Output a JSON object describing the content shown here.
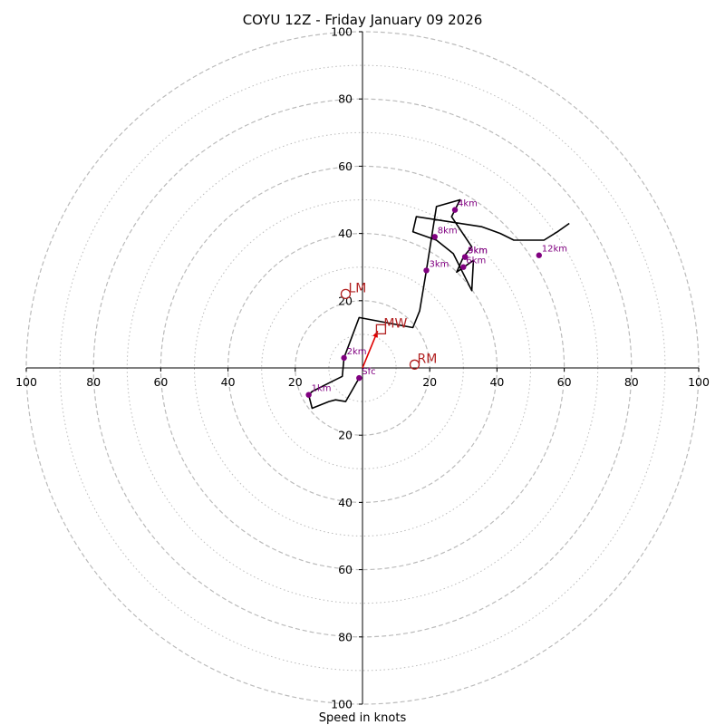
{
  "chart_data": {
    "type": "hodograph",
    "title": "COYU 12Z - Friday January 09 2026",
    "xlabel": "Speed in knots",
    "axis_range": [
      -100,
      100
    ],
    "ring_major": [
      20,
      40,
      60,
      80,
      100
    ],
    "ring_minor": [
      10,
      30,
      50,
      70,
      90
    ],
    "x_ticks": [
      {
        "value": -100,
        "label": "100"
      },
      {
        "value": -80,
        "label": "80"
      },
      {
        "value": -60,
        "label": "60"
      },
      {
        "value": -40,
        "label": "40"
      },
      {
        "value": -20,
        "label": "20"
      },
      {
        "value": 20,
        "label": "20"
      },
      {
        "value": 40,
        "label": "40"
      },
      {
        "value": 60,
        "label": "60"
      },
      {
        "value": 80,
        "label": "80"
      },
      {
        "value": 100,
        "label": "100"
      }
    ],
    "y_ticks": [
      {
        "value": 100,
        "label": "100"
      },
      {
        "value": 80,
        "label": "80"
      },
      {
        "value": 60,
        "label": "60"
      },
      {
        "value": 40,
        "label": "40"
      },
      {
        "value": 20,
        "label": "20"
      },
      {
        "value": -20,
        "label": "20"
      },
      {
        "value": -40,
        "label": "40"
      },
      {
        "value": -60,
        "label": "60"
      },
      {
        "value": -80,
        "label": "80"
      },
      {
        "value": -100,
        "label": "100"
      }
    ],
    "trace": [
      [
        -1,
        -3
      ],
      [
        -5,
        -10
      ],
      [
        -8,
        -9.5
      ],
      [
        -10,
        -10
      ],
      [
        -15,
        -12
      ],
      [
        -16,
        -8
      ],
      [
        -15,
        -7
      ],
      [
        -9,
        -4
      ],
      [
        -6,
        -2.5
      ],
      [
        -5.5,
        3
      ],
      [
        -1,
        15
      ],
      [
        15,
        12
      ],
      [
        17,
        17
      ],
      [
        19,
        29
      ],
      [
        22,
        48
      ],
      [
        29,
        50
      ],
      [
        26.5,
        45
      ],
      [
        32.5,
        36
      ],
      [
        30,
        33
      ],
      [
        28,
        28.5
      ],
      [
        33,
        32
      ],
      [
        32.5,
        23
      ],
      [
        27,
        34
      ],
      [
        22,
        38
      ],
      [
        15,
        40.5
      ],
      [
        16,
        45
      ],
      [
        35.5,
        42
      ],
      [
        41,
        40
      ],
      [
        45,
        38
      ],
      [
        54,
        38
      ],
      [
        58,
        40.5
      ],
      [
        61.5,
        43
      ]
    ],
    "height_markers": [
      {
        "label": "Sfc",
        "u": -1,
        "v": -3
      },
      {
        "label": "1km",
        "u": -16,
        "v": -8
      },
      {
        "label": "2km",
        "u": -5.5,
        "v": 3
      },
      {
        "label": "3km",
        "u": 19,
        "v": 29
      },
      {
        "label": "4km",
        "u": 27.5,
        "v": 47
      },
      {
        "label": "5km",
        "u": 30.5,
        "v": 33
      },
      {
        "label": "6km",
        "u": 30,
        "v": 30
      },
      {
        "label": "8km",
        "u": 21.5,
        "v": 39
      },
      {
        "label": "9km",
        "u": 30.5,
        "v": 33
      },
      {
        "label": "12km",
        "u": 52.5,
        "v": 33.5
      }
    ],
    "motion_markers": [
      {
        "label": "LM",
        "u": -5,
        "v": 22,
        "shape": "circle"
      },
      {
        "label": "RM",
        "u": 15.5,
        "v": 1,
        "shape": "circle"
      },
      {
        "label": "MW",
        "u": 5.5,
        "v": 11.5,
        "shape": "square"
      }
    ],
    "mean_wind_vector": {
      "from": [
        0,
        0
      ],
      "to": [
        4.5,
        11
      ]
    },
    "colors": {
      "trace": "#000000",
      "height_markers": "#800080",
      "motion": "#b22222",
      "vector": "#e00000",
      "grid": "#bbbbbb"
    }
  }
}
